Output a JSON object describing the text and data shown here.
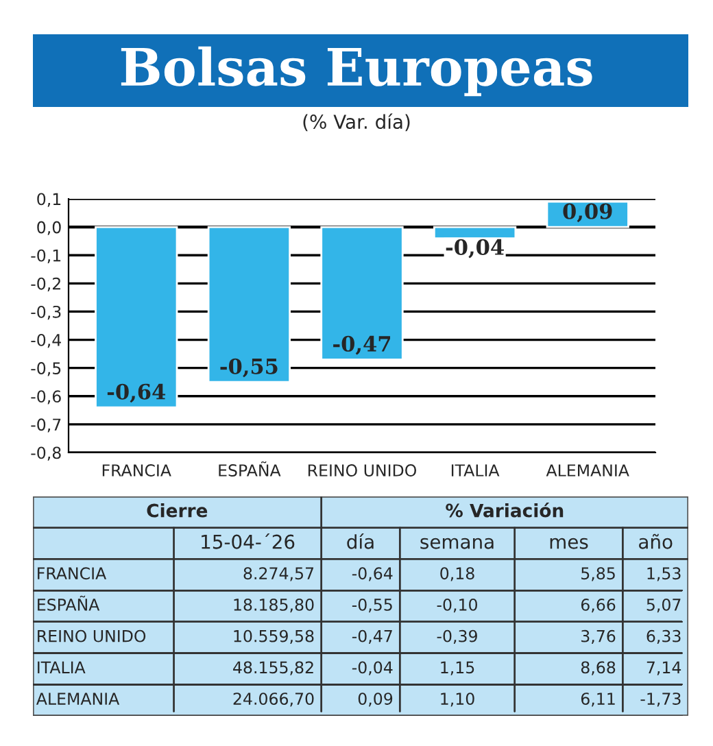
{
  "chart_data": [
    {
      "type": "bar",
      "title": "Bolsas Europeas",
      "subtitle": "(% Var. día)",
      "categories": [
        "FRANCIA",
        "ESPAÑA",
        "REINO UNIDO",
        "ITALIA",
        "ALEMANIA"
      ],
      "values": [
        -0.64,
        -0.55,
        -0.47,
        -0.04,
        0.09
      ],
      "value_labels": [
        "-0,64",
        "-0,55",
        "-0,47",
        "-0,04",
        "0,09"
      ],
      "color": "#33b5e8",
      "ylim": [
        -0.8,
        0.1
      ],
      "yticks": [
        {
          "value": -0.8,
          "label": "-0,8"
        },
        {
          "value": -0.7,
          "label": "-0,7"
        },
        {
          "value": -0.6,
          "label": "-0,6"
        },
        {
          "value": -0.5,
          "label": "-0,5"
        },
        {
          "value": -0.4,
          "label": "-0,4"
        },
        {
          "value": -0.3,
          "label": "-0,3"
        },
        {
          "value": -0.2,
          "label": "-0,2"
        },
        {
          "value": -0.1,
          "label": "-0,1"
        },
        {
          "value": 0.0,
          "label": "0,0"
        },
        {
          "value": 0.1,
          "label": "0,1"
        }
      ],
      "grid": "y"
    },
    {
      "type": "other",
      "annotations": [
        "Cierre",
        "% Variación",
        "15-04-´26",
        "día",
        "semana",
        "mes",
        "año",
        "FRANCIA",
        "8.274,57",
        "-0,64",
        "0,18",
        "5,85",
        "1,53",
        "ESPAÑA",
        "18.185,80",
        "-0,55",
        "-0,10",
        "6,66",
        "5,07",
        "REINO UNIDO",
        "10.559,58",
        "-0,47",
        "-0,39",
        "3,76",
        "6,33",
        "ITALIA",
        "48.155,82",
        "-0,04",
        "1,15",
        "8,68",
        "7,14",
        "ALEMANIA",
        "24.066,70",
        "0,09",
        "1,10",
        "6,11",
        "-1,73"
      ]
    }
  ]
}
